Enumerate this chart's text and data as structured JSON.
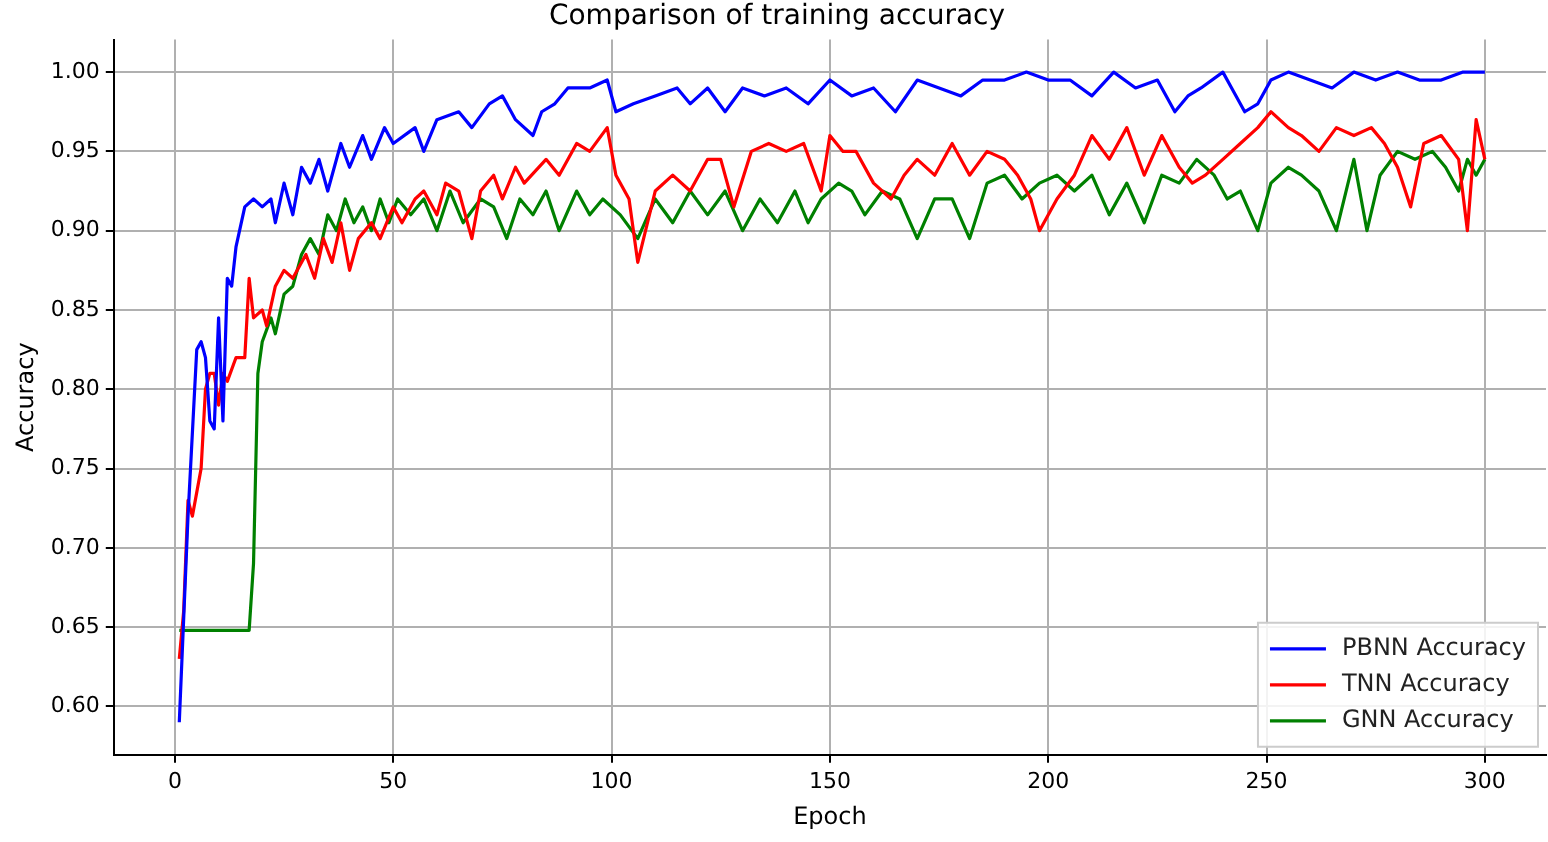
{
  "chart_data": {
    "type": "line",
    "title": "Comparison of training accuracy",
    "xlabel": "Epoch",
    "ylabel": "Accuracy",
    "xlim": [
      -14,
      314
    ],
    "xticks": [
      0,
      50,
      100,
      150,
      200,
      250,
      300
    ],
    "ylim": [
      0.5695,
      1.0205
    ],
    "yticks": [
      {
        "value": 0.6,
        "label": "0.60"
      },
      {
        "value": 0.65,
        "label": "0.65"
      },
      {
        "value": 0.7,
        "label": "0.70"
      },
      {
        "value": 0.75,
        "label": "0.75"
      },
      {
        "value": 0.8,
        "label": "0.80"
      },
      {
        "value": 0.85,
        "label": "0.85"
      },
      {
        "value": 0.9,
        "label": "0.90"
      },
      {
        "value": 0.95,
        "label": "0.95"
      },
      {
        "value": 1.0,
        "label": "1.00"
      }
    ],
    "grid": true,
    "legend": "bottom right",
    "marker": "none",
    "line_style": "solid",
    "series": [
      {
        "name": "PBNN Accuracy",
        "color": "#0000ff",
        "x": [
          1,
          3,
          5,
          6,
          7,
          8,
          9,
          10,
          11,
          12,
          13,
          14,
          16,
          18,
          20,
          22,
          23,
          25,
          27,
          29,
          31,
          33,
          35,
          38,
          40,
          43,
          45,
          48,
          50,
          55,
          57,
          60,
          65,
          68,
          72,
          75,
          78,
          82,
          84,
          87,
          90,
          95,
          99,
          101,
          105,
          110,
          115,
          118,
          122,
          126,
          130,
          135,
          140,
          145,
          150,
          155,
          160,
          165,
          170,
          175,
          180,
          185,
          190,
          195,
          200,
          205,
          210,
          215,
          220,
          225,
          229,
          232,
          235,
          240,
          242,
          245,
          248,
          251,
          255,
          260,
          265,
          270,
          275,
          280,
          285,
          290,
          295,
          300
        ],
        "values": [
          0.59,
          0.72,
          0.825,
          0.83,
          0.82,
          0.78,
          0.775,
          0.845,
          0.78,
          0.87,
          0.865,
          0.89,
          0.915,
          0.92,
          0.915,
          0.92,
          0.905,
          0.93,
          0.91,
          0.94,
          0.93,
          0.945,
          0.925,
          0.955,
          0.94,
          0.96,
          0.945,
          0.965,
          0.955,
          0.965,
          0.95,
          0.97,
          0.975,
          0.965,
          0.98,
          0.985,
          0.97,
          0.96,
          0.975,
          0.98,
          0.99,
          0.99,
          0.995,
          0.975,
          0.98,
          0.985,
          0.99,
          0.98,
          0.99,
          0.975,
          0.99,
          0.985,
          0.99,
          0.98,
          0.995,
          0.985,
          0.99,
          0.975,
          0.995,
          0.99,
          0.985,
          0.995,
          0.995,
          1.0,
          0.995,
          0.995,
          0.985,
          1.0,
          0.99,
          0.995,
          0.975,
          0.985,
          0.99,
          1.0,
          0.99,
          0.975,
          0.98,
          0.995,
          1.0,
          0.995,
          0.99,
          1.0,
          0.995,
          1.0,
          0.995,
          0.995,
          1.0,
          1.0
        ]
      },
      {
        "name": "TNN Accuracy",
        "color": "#ff0000",
        "x": [
          1,
          2,
          3,
          4,
          5,
          6,
          7,
          8,
          9,
          10,
          11,
          12,
          14,
          16,
          17,
          18,
          20,
          21,
          23,
          25,
          27,
          30,
          32,
          34,
          36,
          38,
          40,
          42,
          45,
          47,
          50,
          52,
          55,
          57,
          60,
          62,
          65,
          68,
          70,
          73,
          75,
          78,
          80,
          85,
          88,
          92,
          95,
          99,
          101,
          104,
          106,
          110,
          114,
          118,
          122,
          125,
          128,
          132,
          136,
          140,
          144,
          148,
          150,
          153,
          156,
          160,
          164,
          167,
          170,
          174,
          178,
          182,
          186,
          190,
          193,
          196,
          198,
          202,
          206,
          210,
          214,
          218,
          222,
          226,
          230,
          233,
          236,
          240,
          244,
          248,
          251,
          255,
          258,
          262,
          266,
          270,
          274,
          277,
          280,
          283,
          286,
          290,
          294,
          296,
          298,
          300
        ],
        "values": [
          0.63,
          0.66,
          0.73,
          0.72,
          0.735,
          0.75,
          0.8,
          0.81,
          0.81,
          0.79,
          0.81,
          0.805,
          0.82,
          0.82,
          0.87,
          0.845,
          0.85,
          0.84,
          0.865,
          0.875,
          0.87,
          0.885,
          0.87,
          0.895,
          0.88,
          0.905,
          0.875,
          0.895,
          0.905,
          0.895,
          0.915,
          0.905,
          0.92,
          0.925,
          0.91,
          0.93,
          0.925,
          0.895,
          0.925,
          0.935,
          0.92,
          0.94,
          0.93,
          0.945,
          0.935,
          0.955,
          0.95,
          0.965,
          0.935,
          0.92,
          0.88,
          0.925,
          0.935,
          0.925,
          0.945,
          0.945,
          0.915,
          0.95,
          0.955,
          0.95,
          0.955,
          0.925,
          0.96,
          0.95,
          0.95,
          0.93,
          0.92,
          0.935,
          0.945,
          0.935,
          0.955,
          0.935,
          0.95,
          0.945,
          0.935,
          0.92,
          0.9,
          0.92,
          0.935,
          0.96,
          0.945,
          0.965,
          0.935,
          0.96,
          0.94,
          0.93,
          0.935,
          0.945,
          0.955,
          0.965,
          0.975,
          0.965,
          0.96,
          0.95,
          0.965,
          0.96,
          0.965,
          0.955,
          0.94,
          0.915,
          0.955,
          0.96,
          0.945,
          0.9,
          0.97,
          0.945
        ]
      },
      {
        "name": "GNN Accuracy",
        "color": "#008000",
        "x": [
          1,
          17,
          18,
          19,
          20,
          22,
          23,
          25,
          27,
          29,
          31,
          33,
          35,
          37,
          39,
          41,
          43,
          45,
          47,
          49,
          51,
          54,
          57,
          60,
          63,
          66,
          70,
          73,
          76,
          79,
          82,
          85,
          88,
          92,
          95,
          98,
          102,
          106,
          110,
          114,
          118,
          122,
          126,
          130,
          134,
          138,
          142,
          145,
          148,
          152,
          155,
          158,
          162,
          166,
          170,
          174,
          178,
          182,
          186,
          190,
          194,
          198,
          202,
          206,
          210,
          214,
          218,
          222,
          226,
          230,
          234,
          238,
          241,
          244,
          248,
          251,
          255,
          258,
          262,
          266,
          270,
          273,
          276,
          280,
          284,
          288,
          291,
          294,
          296,
          298,
          300
        ],
        "values": [
          0.648,
          0.648,
          0.69,
          0.81,
          0.83,
          0.845,
          0.835,
          0.86,
          0.865,
          0.885,
          0.895,
          0.885,
          0.91,
          0.9,
          0.92,
          0.905,
          0.915,
          0.9,
          0.92,
          0.905,
          0.92,
          0.91,
          0.92,
          0.9,
          0.925,
          0.905,
          0.92,
          0.915,
          0.895,
          0.92,
          0.91,
          0.925,
          0.9,
          0.925,
          0.91,
          0.92,
          0.91,
          0.895,
          0.92,
          0.905,
          0.925,
          0.91,
          0.925,
          0.9,
          0.92,
          0.905,
          0.925,
          0.905,
          0.92,
          0.93,
          0.925,
          0.91,
          0.925,
          0.92,
          0.895,
          0.92,
          0.92,
          0.895,
          0.93,
          0.935,
          0.92,
          0.93,
          0.935,
          0.925,
          0.935,
          0.91,
          0.93,
          0.905,
          0.935,
          0.93,
          0.945,
          0.935,
          0.92,
          0.925,
          0.9,
          0.93,
          0.94,
          0.935,
          0.925,
          0.9,
          0.945,
          0.9,
          0.935,
          0.95,
          0.945,
          0.95,
          0.94,
          0.925,
          0.945,
          0.935,
          0.945
        ]
      }
    ]
  }
}
